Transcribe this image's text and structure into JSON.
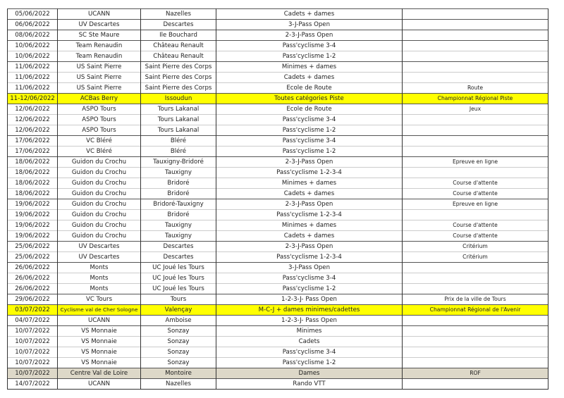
{
  "colors": {
    "highlight_yellow": "#ffff00",
    "highlight_beige": "#ddd8c8"
  },
  "rows": [
    {
      "date": "05/06/2022",
      "club": "UCANN",
      "lieu": "Nazelles",
      "categorie": "Cadets + dames",
      "obs": "",
      "grp": 1
    },
    {
      "date": "06/06/2022",
      "club": "UV Descartes",
      "lieu": "Descartes",
      "categorie": "3-J-Pass Open",
      "obs": "",
      "grp": 1
    },
    {
      "date": "08/06/2022",
      "club": "SC Ste Maure",
      "lieu": "Ile Bouchard",
      "categorie": "2-3-J-Pass Open",
      "obs": "",
      "grp": 1
    },
    {
      "date": "10/06/2022",
      "club": "Team Renaudin",
      "lieu": "Château Renault",
      "categorie": "Pass'cyclisme 3-4",
      "obs": "",
      "grp": 1
    },
    {
      "date": "10/06/2022",
      "club": "Team Renaudin",
      "lieu": "Château Renault",
      "categorie": "Pass'cyclisme 1-2",
      "obs": "",
      "grp": 0
    },
    {
      "date": "11/06/2022",
      "club": "US Saint Pierre",
      "lieu": "Saint Pierre des Corps",
      "categorie": "Minimes + dames",
      "obs": "",
      "grp": 1
    },
    {
      "date": "11/06/2022",
      "club": "US Saint Pierre",
      "lieu": "Saint Pierre des Corps",
      "categorie": "Cadets + dames",
      "obs": "",
      "grp": 0
    },
    {
      "date": "11/06/2022",
      "club": "US Saint Pierre",
      "lieu": "Saint Pierre des Corps",
      "categorie": "Ecole de Route",
      "obs": "Route",
      "grp": 0
    },
    {
      "date": "11-12/06/2022",
      "club": "ACBas Berry",
      "lieu": "Issoudun",
      "categorie": "Toutes catégories Piste",
      "obs": "Championnat Régional Piste",
      "grp": 1,
      "hl": "yellow"
    },
    {
      "date": "12/06/2022",
      "club": "ASPO Tours",
      "lieu": "Tours Lakanal",
      "categorie": "Ecole de Route",
      "obs": "Jeux",
      "grp": 1
    },
    {
      "date": "12/06/2022",
      "club": "ASPO Tours",
      "lieu": "Tours Lakanal",
      "categorie": "Pass'cyclisme 3-4",
      "obs": "",
      "grp": 0
    },
    {
      "date": "12/06/2022",
      "club": "ASPO Tours",
      "lieu": "Tours Lakanal",
      "categorie": "Pass'cyclisme 1-2",
      "obs": "",
      "grp": 0
    },
    {
      "date": "17/06/2022",
      "club": "VC Bléré",
      "lieu": "Bléré",
      "categorie": "Pass'cyclisme 3-4",
      "obs": "",
      "grp": 1
    },
    {
      "date": "17/06/2022",
      "club": "VC Bléré",
      "lieu": "Bléré",
      "categorie": "Pass'cyclisme 1-2",
      "obs": "",
      "grp": 0
    },
    {
      "date": "18/06/2022",
      "club": "Guidon du Crochu",
      "lieu": "Tauxigny-Bridoré",
      "categorie": "2-3-J-Pass Open",
      "obs": "Epreuve en ligne",
      "grp": 1
    },
    {
      "date": "18/06/2022",
      "club": "Guidon du Crochu",
      "lieu": "Tauxigny",
      "categorie": "Pass'cyclisme 1-2-3-4",
      "obs": "",
      "grp": 0
    },
    {
      "date": "18/06/2022",
      "club": "Guidon du Crochu",
      "lieu": "Bridoré",
      "categorie": "Minimes + dames",
      "obs": "Course d'attente",
      "grp": 0
    },
    {
      "date": "18/06/2022",
      "club": "Guidon du Crochu",
      "lieu": "Bridoré",
      "categorie": "Cadets + dames",
      "obs": "Course d'attente",
      "grp": 0
    },
    {
      "date": "19/06/2022",
      "club": "Guidon du Crochu",
      "lieu": "Bridoré-Tauxigny",
      "categorie": "2-3-J-Pass Open",
      "obs": "Epreuve en ligne",
      "grp": 1
    },
    {
      "date": "19/06/2022",
      "club": "Guidon du Crochu",
      "lieu": "Bridoré",
      "categorie": "Pass'cyclisme 1-2-3-4",
      "obs": "",
      "grp": 0
    },
    {
      "date": "19/06/2022",
      "club": "Guidon du Crochu",
      "lieu": "Tauxigny",
      "categorie": "Minimes + dames",
      "obs": "Course d'attente",
      "grp": 0
    },
    {
      "date": "19/06/2022",
      "club": "Guidon du Crochu",
      "lieu": "Tauxigny",
      "categorie": "Cadets + dames",
      "obs": "Course d'attente",
      "grp": 0
    },
    {
      "date": "25/06/2022",
      "club": "UV Descartes",
      "lieu": "Descartes",
      "categorie": "2-3-J-Pass Open",
      "obs": "Critérium",
      "grp": 1
    },
    {
      "date": "25/06/2022",
      "club": "UV Descartes",
      "lieu": "Descartes",
      "categorie": "Pass'cyclisme 1-2-3-4",
      "obs": "Critérium",
      "grp": 0
    },
    {
      "date": "26/06/2022",
      "club": "Monts",
      "lieu": "UC Joué les Tours",
      "categorie": "3-J-Pass Open",
      "obs": "",
      "grp": 1
    },
    {
      "date": "26/06/2022",
      "club": "Monts",
      "lieu": "UC Joué les Tours",
      "categorie": "Pass'cyclisme 3-4",
      "obs": "",
      "grp": 0
    },
    {
      "date": "26/06/2022",
      "club": "Monts",
      "lieu": "UC Joué les Tours",
      "categorie": "Pass'cyclisme 1-2",
      "obs": "",
      "grp": 0
    },
    {
      "date": "29/06/2022",
      "club": "VC Tours",
      "lieu": "Tours",
      "categorie": "1-2-3-J- Pass Open",
      "obs": "Prix de la ville de Tours",
      "grp": 1
    },
    {
      "date": "03/07/2022",
      "club": "Cyclisme val de Cher Sologne",
      "lieu": "Valençay",
      "categorie": "M-C-J + dames minimes/cadettes",
      "obs": "Championnat Régional de l'Avenir",
      "grp": 1,
      "hl": "yellow"
    },
    {
      "date": "04/07/2022",
      "club": "UCANN",
      "lieu": "Amboise",
      "categorie": "1-2-3-J- Pass Open",
      "obs": "",
      "grp": 1
    },
    {
      "date": "10/07/2022",
      "club": "VS Monnaie",
      "lieu": "Sonzay",
      "categorie": "Minimes",
      "obs": "",
      "grp": 1
    },
    {
      "date": "10/07/2022",
      "club": "VS Monnaie",
      "lieu": "Sonzay",
      "categorie": "Cadets",
      "obs": "",
      "grp": 0
    },
    {
      "date": "10/07/2022",
      "club": "VS Monnaie",
      "lieu": "Sonzay",
      "categorie": "Pass'cyclisme 3-4",
      "obs": "",
      "grp": 0
    },
    {
      "date": "10/07/2022",
      "club": "VS Monnaie",
      "lieu": "Sonzay",
      "categorie": "Pass'cyclisme 1-2",
      "obs": "",
      "grp": 0
    },
    {
      "date": "10/07/2022",
      "club": "Centre Val de Loire",
      "lieu": "Montoire",
      "categorie": "Dames",
      "obs": "ROF",
      "grp": 1,
      "hl": "beige"
    },
    {
      "date": "14/07/2022",
      "club": "UCANN",
      "lieu": "Nazelles",
      "categorie": "Rando VTT",
      "obs": "",
      "grp": 1
    }
  ]
}
